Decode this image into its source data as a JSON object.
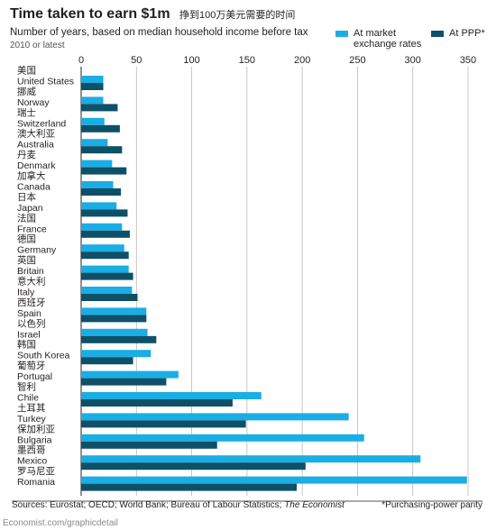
{
  "header": {
    "title": "Time taken to earn $1m",
    "title_zh": "挣到100万美元需要的时间",
    "subtitle": "Number of years, based on median household income before tax",
    "note": "2010 or latest"
  },
  "legend": {
    "market": "At market exchange rates",
    "ppp": "At PPP*"
  },
  "footer": {
    "sources": "Sources: Eurostat; OECD; World Bank; Bureau of Labour Statistics; ",
    "sources_italic": "The Economist",
    "footnote": "*Purchasing-power parity",
    "url": "Economist.com/graphicdetail"
  },
  "colors": {
    "market": "#1aaee4",
    "ppp": "#0e5068",
    "grid": "#b9b9b9",
    "text": "#231f20"
  },
  "chart_data": {
    "type": "bar",
    "orientation": "horizontal",
    "title": "Time taken to earn $1m",
    "xlim": [
      0,
      350
    ],
    "xticks": [
      0,
      50,
      100,
      150,
      200,
      250,
      300,
      350
    ],
    "grid": true,
    "legend_position": "top-right",
    "categories": [
      "United States",
      "Norway",
      "Switzerland",
      "Australia",
      "Denmark",
      "Canada",
      "Japan",
      "France",
      "Germany",
      "Britain",
      "Italy",
      "Spain",
      "Israel",
      "South Korea",
      "Portugal",
      "Chile",
      "Turkey",
      "Bulgaria",
      "Mexico",
      "Romania"
    ],
    "categories_zh": [
      "美国",
      "挪威",
      "瑞士",
      "澳大利亚",
      "丹麦",
      "加拿大",
      "日本",
      "法国",
      "德国",
      "英国",
      "意大利",
      "西班牙",
      "以色列",
      "韩国",
      "葡萄牙",
      "智利",
      "土耳其",
      "保加利亚",
      "墨西哥",
      "罗马尼亚"
    ],
    "series": [
      {
        "name": "At market exchange rates",
        "values": [
          20,
          20,
          21,
          24,
          28,
          29,
          32,
          37,
          39,
          43,
          46,
          59,
          60,
          63,
          88,
          163,
          242,
          256,
          307,
          349
        ]
      },
      {
        "name": "At PPP*",
        "values": [
          20,
          33,
          35,
          37,
          41,
          36,
          42,
          44,
          43,
          47,
          51,
          59,
          68,
          47,
          77,
          137,
          149,
          123,
          203,
          195
        ]
      }
    ]
  }
}
